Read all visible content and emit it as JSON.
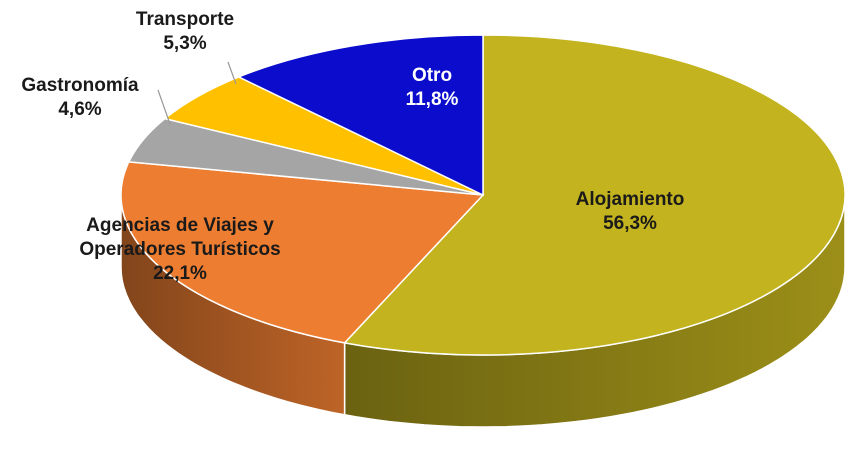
{
  "chart_data": {
    "type": "pie",
    "categories": [
      "Alojamiento",
      "Agencias de Viajes y Operadores Turísticos",
      "Gastronomía",
      "Transporte",
      "Otro"
    ],
    "values": [
      56.3,
      22.1,
      4.6,
      5.3,
      11.8
    ],
    "value_labels": [
      "56,3%",
      "22,1%",
      "4,6%",
      "5,3%",
      "11,8%"
    ],
    "colors": [
      "#c3b31e",
      "#ed7d31",
      "#a5a5a5",
      "#ffc000",
      "#0c0ccc"
    ]
  }
}
